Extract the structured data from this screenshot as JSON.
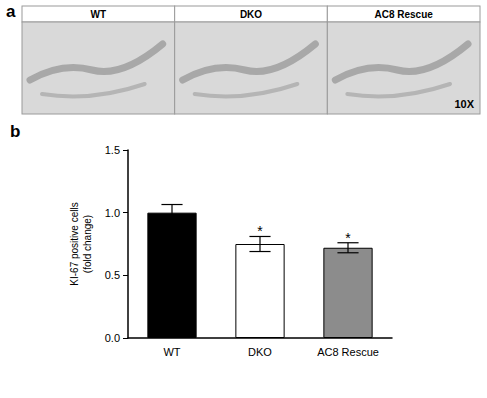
{
  "figure": {
    "panel_a": {
      "label": "a",
      "images": [
        "WT",
        "DKO",
        "AC8 Rescue"
      ],
      "magnification": "10X"
    },
    "panel_b": {
      "label": "b"
    }
  },
  "chart_data": {
    "type": "bar",
    "ylabel": "KI-67 positive cells\n(fold change)",
    "categories": [
      "WT",
      "DKO",
      "AC8 Rescue"
    ],
    "values": [
      1.0,
      0.75,
      0.72
    ],
    "errors": [
      0.065,
      0.06,
      0.04
    ],
    "colors": [
      "#000000",
      "#ffffff",
      "#8c8c8c"
    ],
    "ylim": [
      0,
      1.5
    ],
    "yticks": [
      {
        "value": 0,
        "label": "0.0"
      },
      {
        "value": 0.5,
        "label": "0.5"
      },
      {
        "value": 1,
        "label": "1.0"
      },
      {
        "value": 1.5,
        "label": "1.5"
      }
    ],
    "grid": false,
    "annotations": [
      {
        "category": "DKO",
        "text": "*"
      },
      {
        "category": "AC8 Rescue",
        "text": "*"
      }
    ]
  }
}
